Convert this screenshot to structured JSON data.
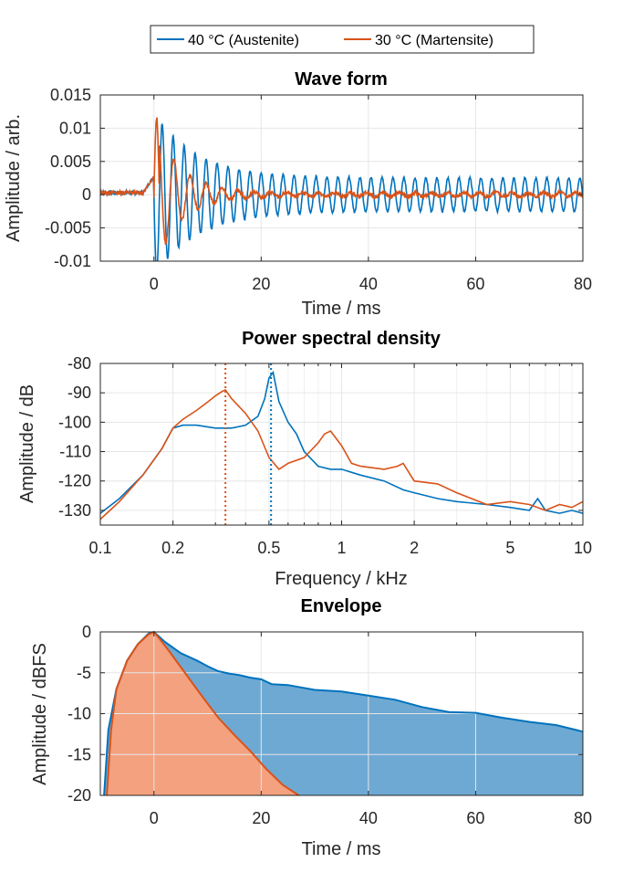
{
  "legend": [
    {
      "label": "40 °C (Austenite)",
      "color": "#0072BD"
    },
    {
      "label": "30 °C (Martensite)",
      "color": "#D95319"
    }
  ],
  "chart_data": [
    {
      "type": "line",
      "title": "Wave form",
      "xlabel": "Time / ms",
      "ylabel": "Amplitude / arb.",
      "xlim": [
        -10,
        80
      ],
      "ylim": [
        -0.01,
        0.015
      ],
      "xticks": [
        0,
        20,
        40,
        60,
        80
      ],
      "yticks": [
        -0.01,
        -0.005,
        0,
        0.005,
        0.01,
        0.015
      ],
      "yticklabels": [
        "-0.01",
        "-0.005",
        "0",
        "0.005",
        "0.01",
        "0.015"
      ],
      "grid": true,
      "series": [
        {
          "name": "40 °C (Austenite)",
          "color": "#0072BD",
          "pre_trigger_level": 0.0003,
          "onset_ms": 0,
          "peak_amplitude": 0.0098,
          "trough_amplitude": -0.0095,
          "oscillation_period_ms": 2.05,
          "late_amplitude": 0.0025
        },
        {
          "name": "30 °C (Martensite)",
          "color": "#D95319",
          "pre_trigger_level": 0.0003,
          "onset_ms": 0,
          "peak_amplitude": 0.0117,
          "trough_amplitude": -0.006,
          "oscillation_period_ms": 3.0,
          "late_amplitude": 0.0003
        }
      ]
    },
    {
      "type": "line",
      "title": "Power spectral density",
      "xlabel": "Frequency / kHz",
      "ylabel": "Amplitude / dB",
      "xscale": "log",
      "xlim": [
        0.1,
        10
      ],
      "ylim": [
        -135,
        -80
      ],
      "xticks": [
        0.1,
        0.2,
        0.5,
        1,
        2,
        5,
        10
      ],
      "xticklabels": [
        "0.1",
        "0.2",
        "0.5",
        "1",
        "2",
        "5",
        "10"
      ],
      "yticks": [
        -130,
        -120,
        -110,
        -100,
        -90,
        -80
      ],
      "grid": true,
      "series": [
        {
          "name": "40 °C (Austenite)",
          "color": "#0072BD",
          "x": [
            0.1,
            0.12,
            0.15,
            0.18,
            0.2,
            0.22,
            0.25,
            0.3,
            0.35,
            0.4,
            0.45,
            0.48,
            0.5,
            0.52,
            0.55,
            0.6,
            0.65,
            0.7,
            0.8,
            0.9,
            1.0,
            1.2,
            1.5,
            1.8,
            2.0,
            2.5,
            3.0,
            4.0,
            5.0,
            6.0,
            6.5,
            7.0,
            8.0,
            9.0,
            10.0
          ],
          "y": [
            -131,
            -126,
            -118,
            -109,
            -102,
            -101,
            -101,
            -102,
            -102,
            -101,
            -98,
            -92,
            -85,
            -83,
            -93,
            -100,
            -104,
            -110,
            -115,
            -116,
            -116,
            -118,
            -120,
            -123,
            -124,
            -126,
            -127,
            -128,
            -129,
            -130,
            -126,
            -130,
            -131,
            -130,
            -131
          ]
        },
        {
          "name": "30 °C (Martensite)",
          "color": "#D95319",
          "x": [
            0.1,
            0.12,
            0.15,
            0.18,
            0.2,
            0.22,
            0.25,
            0.28,
            0.3,
            0.32,
            0.33,
            0.35,
            0.4,
            0.45,
            0.5,
            0.55,
            0.6,
            0.7,
            0.8,
            0.85,
            0.9,
            1.0,
            1.1,
            1.2,
            1.5,
            1.7,
            1.8,
            2.0,
            2.5,
            3.0,
            4.0,
            5.0,
            6.0,
            7.0,
            8.0,
            9.0,
            10.0
          ],
          "y": [
            -133,
            -127,
            -118,
            -109,
            -102,
            -99,
            -96,
            -93,
            -91,
            -89.5,
            -89,
            -92,
            -97,
            -103,
            -112,
            -116,
            -114,
            -112,
            -107,
            -104,
            -103,
            -108,
            -114,
            -115,
            -116,
            -115,
            -114,
            -120,
            -121,
            -124,
            -128,
            -127,
            -128,
            -130,
            -128,
            -129,
            -127
          ]
        }
      ],
      "markers": [
        {
          "series": "30 °C (Martensite)",
          "x": 0.33,
          "style": "dotted vertical"
        },
        {
          "series": "40 °C (Austenite)",
          "x": 0.51,
          "style": "dotted vertical"
        }
      ]
    },
    {
      "type": "area",
      "title": "Envelope",
      "xlabel": "Time / ms",
      "ylabel": "Amplitude / dBFS",
      "xlim": [
        -10,
        80
      ],
      "ylim": [
        -20,
        0
      ],
      "xticks": [
        0,
        20,
        40,
        60,
        80
      ],
      "yticks": [
        -20,
        -15,
        -10,
        -5,
        0
      ],
      "grid": true,
      "series": [
        {
          "name": "40 °C (Austenite)",
          "color": "#0072BD",
          "x": [
            -9.3,
            -8.5,
            -7,
            -5,
            -3,
            -1,
            0,
            2,
            5,
            8,
            10,
            12,
            14,
            16,
            18,
            20,
            22,
            25,
            30,
            35,
            40,
            45,
            50,
            55,
            60,
            65,
            70,
            75,
            80
          ],
          "y": [
            -20,
            -12,
            -7,
            -3.5,
            -1.5,
            -0.2,
            0,
            -1.2,
            -2.6,
            -3.5,
            -4.2,
            -4.8,
            -5.1,
            -5.3,
            -5.6,
            -5.8,
            -6.4,
            -6.5,
            -7.1,
            -7.3,
            -7.8,
            -8.3,
            -9.2,
            -9.8,
            -9.9,
            -10.5,
            -11.0,
            -11.4,
            -12.2
          ]
        },
        {
          "name": "30 °C (Martensite)",
          "color": "#D95319",
          "x": [
            -8.8,
            -8,
            -7,
            -5,
            -3,
            -1,
            0,
            1,
            3,
            6,
            9,
            12,
            15,
            18,
            21,
            24,
            27
          ],
          "y": [
            -20,
            -12,
            -7,
            -3.5,
            -1.5,
            -0.3,
            0,
            -0.8,
            -2.5,
            -5.2,
            -7.9,
            -10.5,
            -12.6,
            -14.6,
            -16.8,
            -18.7,
            -20
          ]
        }
      ]
    }
  ]
}
